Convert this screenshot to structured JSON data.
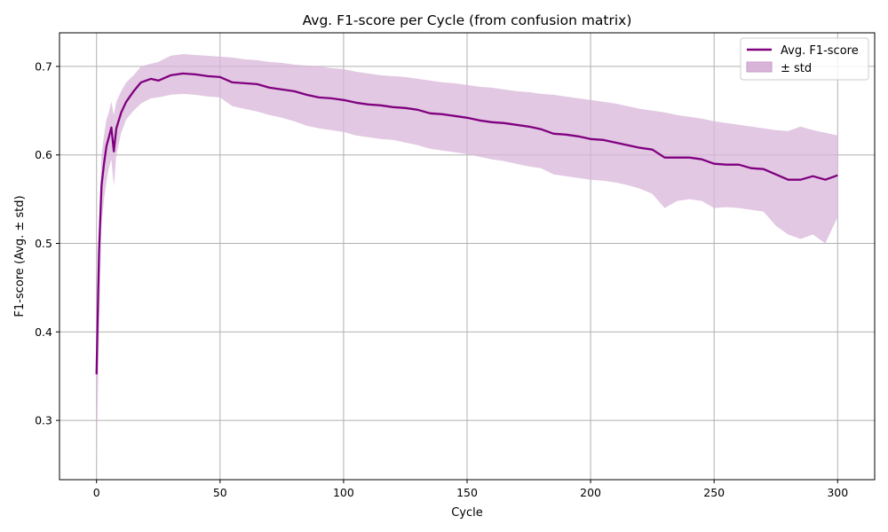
{
  "chart_data": {
    "type": "line",
    "title": "Avg. F1-score per Cycle (from confusion matrix)",
    "xlabel": "Cycle",
    "ylabel": "F1-score (Avg. ± std)",
    "xlim": [
      -15,
      315
    ],
    "ylim": [
      0.233,
      0.738
    ],
    "xticks": [
      0,
      50,
      100,
      150,
      200,
      250,
      300
    ],
    "yticks": [
      0.3,
      0.4,
      0.5,
      0.6,
      0.7
    ],
    "grid": true,
    "legend_position": "top-right",
    "colors": {
      "line": "#800080",
      "band": "#d8b5d8",
      "grid": "#b0b0b0"
    },
    "series": [
      {
        "name": "Avg. F1-score",
        "style": "line"
      },
      {
        "name": "± std",
        "style": "band"
      }
    ],
    "x": [
      0,
      1,
      2,
      3,
      4,
      5,
      6,
      7,
      8,
      10,
      12,
      15,
      18,
      22,
      25,
      30,
      35,
      40,
      45,
      50,
      55,
      60,
      65,
      70,
      75,
      80,
      85,
      90,
      95,
      100,
      105,
      110,
      115,
      120,
      125,
      130,
      135,
      140,
      145,
      150,
      155,
      160,
      165,
      170,
      175,
      180,
      185,
      190,
      195,
      200,
      205,
      210,
      215,
      220,
      225,
      230,
      235,
      240,
      245,
      250,
      255,
      260,
      265,
      270,
      275,
      280,
      285,
      290,
      295,
      300
    ],
    "mean": [
      0.352,
      0.49,
      0.565,
      0.59,
      0.61,
      0.62,
      0.631,
      0.604,
      0.63,
      0.648,
      0.66,
      0.672,
      0.682,
      0.686,
      0.684,
      0.69,
      0.692,
      0.691,
      0.689,
      0.688,
      0.682,
      0.681,
      0.68,
      0.676,
      0.674,
      0.672,
      0.668,
      0.665,
      0.664,
      0.662,
      0.659,
      0.657,
      0.656,
      0.654,
      0.653,
      0.651,
      0.647,
      0.646,
      0.644,
      0.642,
      0.639,
      0.637,
      0.636,
      0.634,
      0.632,
      0.629,
      0.624,
      0.623,
      0.621,
      0.618,
      0.617,
      0.614,
      0.611,
      0.608,
      0.606,
      0.597,
      0.597,
      0.597,
      0.595,
      0.59,
      0.589,
      0.589,
      0.585,
      0.584,
      0.578,
      0.572,
      0.572,
      0.576,
      0.572,
      0.577
    ],
    "upper": [
      0.36,
      0.52,
      0.6,
      0.622,
      0.64,
      0.648,
      0.66,
      0.645,
      0.66,
      0.672,
      0.682,
      0.69,
      0.7,
      0.703,
      0.705,
      0.712,
      0.714,
      0.713,
      0.712,
      0.711,
      0.71,
      0.708,
      0.707,
      0.705,
      0.704,
      0.702,
      0.701,
      0.7,
      0.698,
      0.697,
      0.694,
      0.692,
      0.69,
      0.689,
      0.688,
      0.686,
      0.684,
      0.682,
      0.681,
      0.679,
      0.677,
      0.676,
      0.674,
      0.672,
      0.671,
      0.669,
      0.668,
      0.666,
      0.664,
      0.662,
      0.66,
      0.658,
      0.655,
      0.652,
      0.65,
      0.648,
      0.645,
      0.643,
      0.641,
      0.638,
      0.636,
      0.634,
      0.632,
      0.63,
      0.628,
      0.627,
      0.632,
      0.628,
      0.625,
      0.622
    ],
    "lower": [
      0.25,
      0.4,
      0.52,
      0.55,
      0.57,
      0.585,
      0.595,
      0.565,
      0.6,
      0.625,
      0.64,
      0.65,
      0.658,
      0.664,
      0.665,
      0.668,
      0.669,
      0.668,
      0.666,
      0.665,
      0.655,
      0.652,
      0.649,
      0.645,
      0.642,
      0.638,
      0.633,
      0.63,
      0.628,
      0.626,
      0.622,
      0.62,
      0.618,
      0.617,
      0.614,
      0.611,
      0.607,
      0.605,
      0.603,
      0.601,
      0.598,
      0.595,
      0.593,
      0.59,
      0.587,
      0.585,
      0.578,
      0.576,
      0.574,
      0.572,
      0.571,
      0.569,
      0.566,
      0.562,
      0.556,
      0.54,
      0.548,
      0.55,
      0.548,
      0.54,
      0.541,
      0.54,
      0.538,
      0.536,
      0.52,
      0.51,
      0.505,
      0.51,
      0.5,
      0.53
    ]
  }
}
